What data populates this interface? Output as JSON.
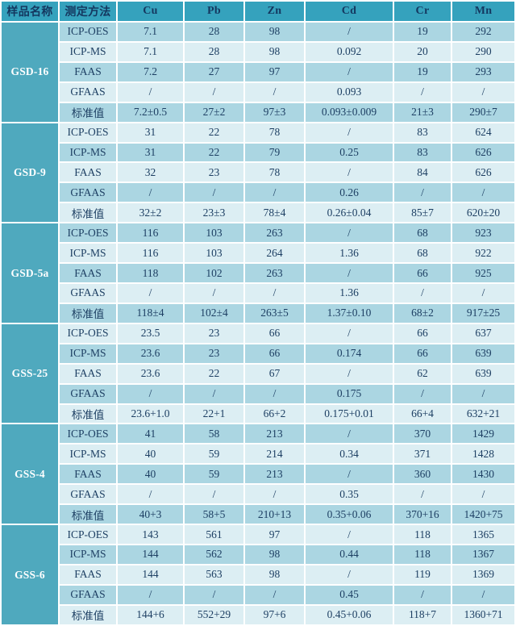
{
  "table": {
    "columns": [
      "样品名称",
      "测定方法",
      "Cu",
      "Pb",
      "Zn",
      "Cd",
      "Cr",
      "Mn"
    ],
    "groups": [
      {
        "sample": "GSD-16",
        "rows": [
          {
            "method": "ICP-OES",
            "values": [
              "7.1",
              "28",
              "98",
              "/",
              "19",
              "292"
            ]
          },
          {
            "method": "ICP-MS",
            "values": [
              "7.1",
              "28",
              "98",
              "0.092",
              "20",
              "290"
            ]
          },
          {
            "method": "FAAS",
            "values": [
              "7.2",
              "27",
              "97",
              "/",
              "19",
              "293"
            ]
          },
          {
            "method": "GFAAS",
            "values": [
              "/",
              "/",
              "/",
              "0.093",
              "/",
              "/"
            ]
          },
          {
            "method": "标准值",
            "values": [
              "7.2±0.5",
              "27±2",
              "97±3",
              "0.093±0.009",
              "21±3",
              "290±7"
            ]
          }
        ]
      },
      {
        "sample": "GSD-9",
        "rows": [
          {
            "method": "ICP-OES",
            "values": [
              "31",
              "22",
              "78",
              "/",
              "83",
              "624"
            ]
          },
          {
            "method": "ICP-MS",
            "values": [
              "31",
              "22",
              "79",
              "0.25",
              "83",
              "626"
            ]
          },
          {
            "method": "FAAS",
            "values": [
              "32",
              "23",
              "78",
              "/",
              "84",
              "626"
            ]
          },
          {
            "method": "GFAAS",
            "values": [
              "/",
              "/",
              "/",
              "0.26",
              "/",
              "/"
            ]
          },
          {
            "method": "标准值",
            "values": [
              "32±2",
              "23±3",
              "78±4",
              "0.26±0.04",
              "85±7",
              "620±20"
            ]
          }
        ]
      },
      {
        "sample": "GSD-5a",
        "rows": [
          {
            "method": "ICP-OES",
            "values": [
              "116",
              "103",
              "263",
              "/",
              "68",
              "923"
            ]
          },
          {
            "method": "ICP-MS",
            "values": [
              "116",
              "103",
              "264",
              "1.36",
              "68",
              "922"
            ]
          },
          {
            "method": "FAAS",
            "values": [
              "118",
              "102",
              "263",
              "/",
              "66",
              "925"
            ]
          },
          {
            "method": "GFAAS",
            "values": [
              "/",
              "/",
              "/",
              "1.36",
              "/",
              "/"
            ]
          },
          {
            "method": "标准值",
            "values": [
              "118±4",
              "102±4",
              "263±5",
              "1.37±0.10",
              "68±2",
              "917±25"
            ]
          }
        ]
      },
      {
        "sample": "GSS-25",
        "rows": [
          {
            "method": "ICP-OES",
            "values": [
              "23.5",
              "23",
              "66",
              "/",
              "66",
              "637"
            ]
          },
          {
            "method": "ICP-MS",
            "values": [
              "23.6",
              "23",
              "66",
              "0.174",
              "66",
              "639"
            ]
          },
          {
            "method": "FAAS",
            "values": [
              "23.6",
              "22",
              "67",
              "/",
              "62",
              "639"
            ]
          },
          {
            "method": "GFAAS",
            "values": [
              "/",
              "/",
              "/",
              "0.175",
              "/",
              "/"
            ]
          },
          {
            "method": "标准值",
            "values": [
              "23.6+1.0",
              "22+1",
              "66+2",
              "0.175+0.01",
              "66+4",
              "632+21"
            ]
          }
        ]
      },
      {
        "sample": "GSS-4",
        "rows": [
          {
            "method": "ICP-OES",
            "values": [
              "41",
              "58",
              "213",
              "/",
              "370",
              "1429"
            ]
          },
          {
            "method": "ICP-MS",
            "values": [
              "40",
              "59",
              "214",
              "0.34",
              "371",
              "1428"
            ]
          },
          {
            "method": "FAAS",
            "values": [
              "40",
              "59",
              "213",
              "/",
              "360",
              "1430"
            ]
          },
          {
            "method": "GFAAS",
            "values": [
              "/",
              "/",
              "/",
              "0.35",
              "/",
              "/"
            ]
          },
          {
            "method": "标准值",
            "values": [
              "40+3",
              "58+5",
              "210+13",
              "0.35+0.06",
              "370+16",
              "1420+75"
            ]
          }
        ]
      },
      {
        "sample": "GSS-6",
        "rows": [
          {
            "method": "ICP-OES",
            "values": [
              "143",
              "561",
              "97",
              "/",
              "118",
              "1365"
            ]
          },
          {
            "method": "ICP-MS",
            "values": [
              "144",
              "562",
              "98",
              "0.44",
              "118",
              "1367"
            ]
          },
          {
            "method": "FAAS",
            "values": [
              "144",
              "563",
              "98",
              "/",
              "119",
              "1369"
            ]
          },
          {
            "method": "GFAAS",
            "values": [
              "/",
              "/",
              "/",
              "0.45",
              "/",
              "/"
            ]
          },
          {
            "method": "标准值",
            "values": [
              "144+6",
              "552+29",
              "97+6",
              "0.45+0.06",
              "118+7",
              "1360+71"
            ]
          }
        ]
      }
    ]
  },
  "colors": {
    "header_bg": "#35a2bd",
    "header_text": "#14375f",
    "sample_bg": "#4fa9be",
    "sample_text": "#ffffff",
    "row_medium": "#abd6e2",
    "row_light": "#dceef3",
    "body_text": "#1d3f63",
    "grid": "#ffffff"
  }
}
